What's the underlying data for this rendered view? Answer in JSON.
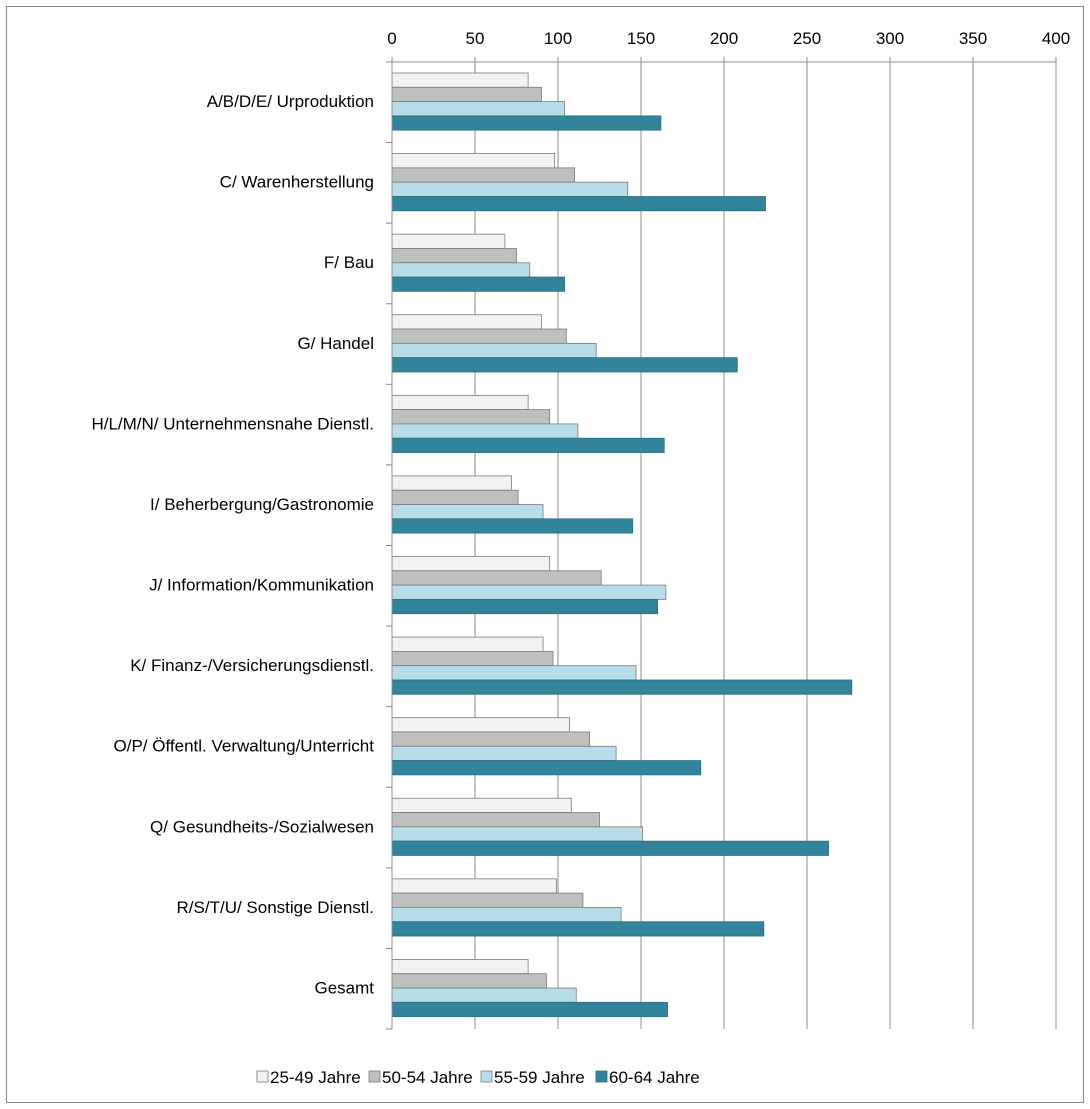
{
  "chart_data": {
    "type": "bar",
    "orientation": "horizontal",
    "categories": [
      "A/B/D/E/ Urproduktion",
      "C/ Warenherstellung",
      "F/ Bau",
      "G/ Handel",
      "H/L/M/N/ Unternehmensnahe Dienstl.",
      "I/ Beherbergung/Gastronomie",
      "J/ Information/Kommunikation",
      "K/ Finanz-/Versicherungsdienstl.",
      "O/P/ Öffentl. Verwaltung/Unterricht",
      "Q/ Gesundheits-/Sozialwesen",
      "R/S/T/U/ Sonstige Dienstl.",
      "Gesamt"
    ],
    "series": [
      {
        "name": "25-49 Jahre",
        "color": "#f2f2f2",
        "values": [
          82,
          98,
          68,
          90,
          82,
          72,
          95,
          91,
          107,
          108,
          99,
          82
        ]
      },
      {
        "name": "50-54 Jahre",
        "color": "#bfbfbf",
        "values": [
          90,
          110,
          75,
          105,
          95,
          76,
          126,
          97,
          119,
          125,
          115,
          93
        ]
      },
      {
        "name": "55-59 Jahre",
        "color": "#b7dde8",
        "values": [
          104,
          142,
          83,
          123,
          112,
          91,
          165,
          147,
          135,
          151,
          138,
          111
        ]
      },
      {
        "name": "60-64 Jahre",
        "color": "#31849b",
        "values": [
          162,
          225,
          104,
          208,
          164,
          145,
          160,
          277,
          186,
          263,
          224,
          166
        ]
      }
    ],
    "xlim": [
      0,
      400
    ],
    "xticks": [
      "0",
      "50",
      "100",
      "150",
      "200",
      "250",
      "300",
      "350",
      "400"
    ],
    "xaxis_position": "top",
    "grid": true,
    "legend": "bottom",
    "title": "",
    "xlabel": "",
    "ylabel": ""
  }
}
